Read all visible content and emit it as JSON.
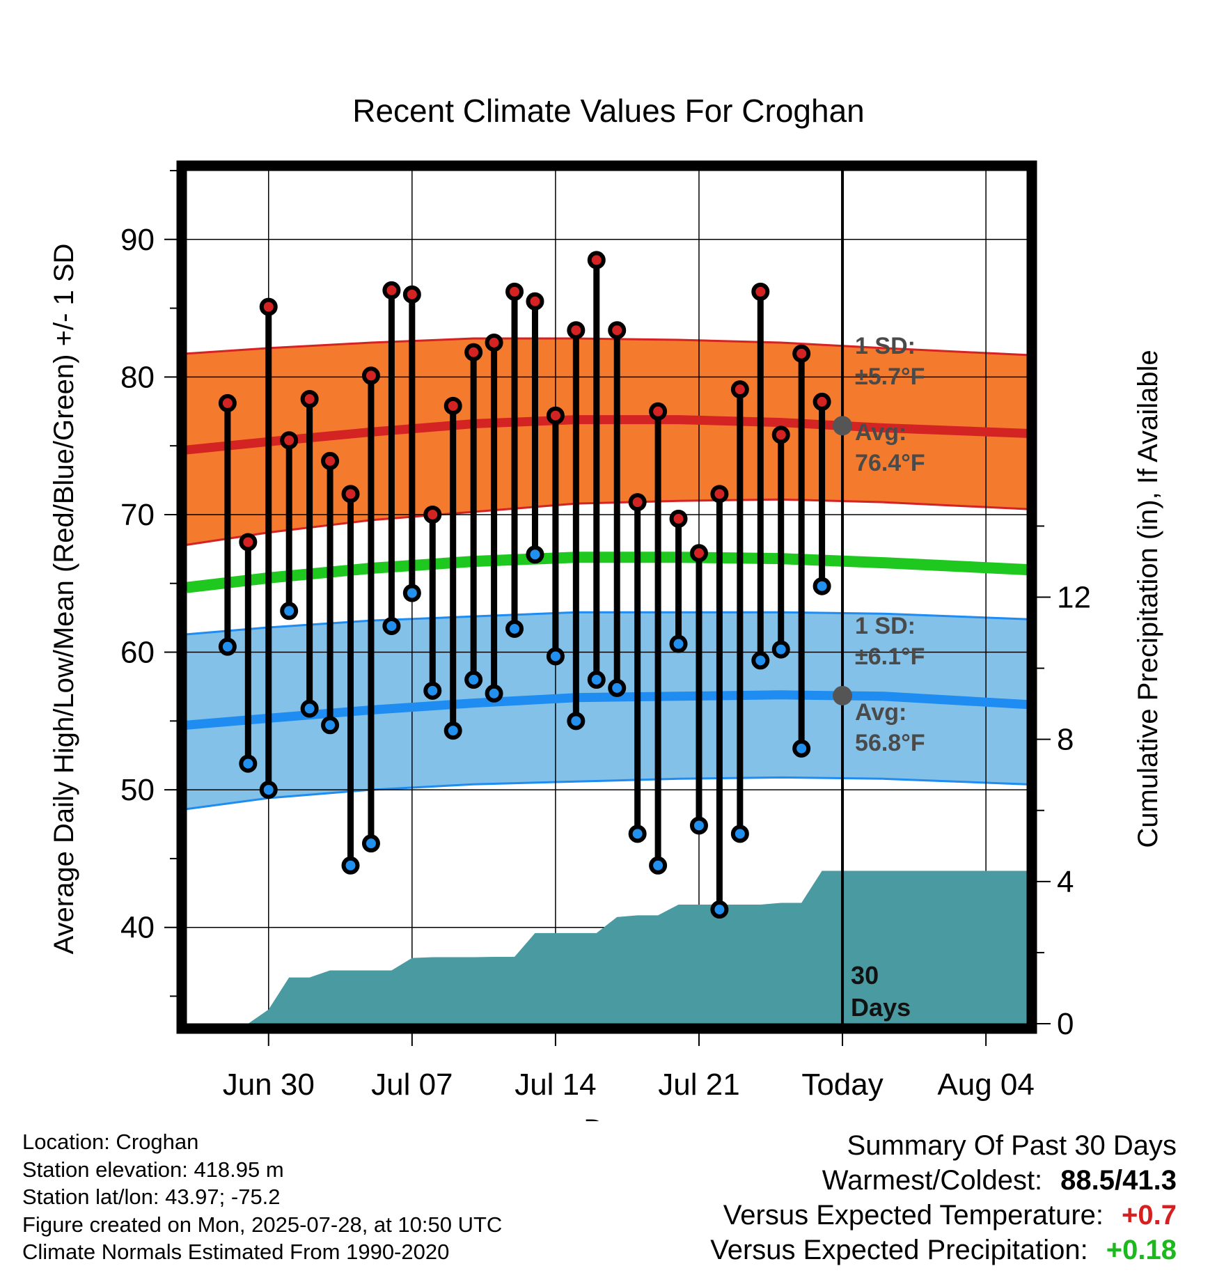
{
  "chart_data": {
    "type": "line",
    "title": "Recent Climate Values For Croghan",
    "xlabel": "Day",
    "ylabel": "Average Daily High/Low/Mean (Red/Blue/Green) +/- 1 SD",
    "y2label": "Cumulative Precipitation (in), If Available",
    "x_ticks": [
      "Jun 30",
      "Jul 07",
      "Jul 14",
      "Jul 21",
      "Today",
      "Aug 04"
    ],
    "y_ticks": [
      40,
      50,
      60,
      70,
      80,
      90
    ],
    "y2_ticks": [
      0,
      4,
      8,
      12
    ],
    "ylim": [
      33,
      95
    ],
    "y2lim": [
      0,
      24
    ],
    "xlim": [
      "2025-06-26",
      "2025-08-06"
    ],
    "today": "2025-07-28",
    "grid": true,
    "observed": {
      "dates": [
        "2025-06-28",
        "2025-06-29",
        "2025-06-30",
        "2025-07-01",
        "2025-07-02",
        "2025-07-03",
        "2025-07-04",
        "2025-07-05",
        "2025-07-06",
        "2025-07-07",
        "2025-07-08",
        "2025-07-09",
        "2025-07-10",
        "2025-07-11",
        "2025-07-12",
        "2025-07-13",
        "2025-07-14",
        "2025-07-15",
        "2025-07-16",
        "2025-07-17",
        "2025-07-18",
        "2025-07-19",
        "2025-07-20",
        "2025-07-21",
        "2025-07-22",
        "2025-07-23",
        "2025-07-24",
        "2025-07-25",
        "2025-07-26",
        "2025-07-27"
      ],
      "highs": [
        78.1,
        68.0,
        85.1,
        75.4,
        78.4,
        73.9,
        71.5,
        80.1,
        86.3,
        86.0,
        70.0,
        77.9,
        81.8,
        82.5,
        86.2,
        85.5,
        77.2,
        83.4,
        88.5,
        83.4,
        70.9,
        77.5,
        69.7,
        67.2,
        71.5,
        79.1,
        86.2,
        75.8,
        81.7,
        78.2
      ],
      "lows": [
        60.4,
        51.9,
        50.0,
        63.0,
        55.9,
        54.7,
        44.5,
        46.1,
        61.9,
        64.3,
        57.2,
        54.3,
        58.0,
        57.0,
        61.7,
        67.1,
        59.7,
        55.0,
        58.0,
        57.4,
        46.8,
        44.5,
        60.6,
        47.4,
        41.3,
        46.8,
        59.4,
        60.2,
        53.0,
        64.8
      ]
    },
    "normals": {
      "dates": [
        "2025-06-26",
        "2025-06-30",
        "2025-07-05",
        "2025-07-10",
        "2025-07-15",
        "2025-07-20",
        "2025-07-25",
        "2025-07-30",
        "2025-08-06"
      ],
      "high_avg": [
        74.7,
        75.3,
        76.0,
        76.6,
        76.9,
        76.9,
        76.7,
        76.3,
        75.9
      ],
      "high_sd_upper": [
        81.7,
        82.1,
        82.5,
        82.8,
        82.8,
        82.7,
        82.5,
        82.1,
        81.6
      ],
      "high_sd_lower": [
        67.8,
        68.7,
        69.6,
        70.2,
        70.8,
        71.0,
        71.1,
        70.9,
        70.4
      ],
      "mean_avg": [
        64.7,
        65.4,
        66.1,
        66.6,
        66.9,
        66.9,
        66.8,
        66.5,
        66.0
      ],
      "low_avg": [
        54.7,
        55.2,
        55.8,
        56.3,
        56.7,
        56.8,
        56.9,
        56.8,
        56.2
      ],
      "low_sd_upper": [
        61.3,
        61.8,
        62.3,
        62.6,
        62.9,
        62.9,
        62.9,
        62.8,
        62.4
      ],
      "low_sd_lower": [
        48.6,
        49.4,
        50.0,
        50.4,
        50.6,
        50.8,
        50.9,
        50.8,
        50.4
      ]
    },
    "precip": {
      "dates": [
        "2025-06-28",
        "2025-06-29",
        "2025-06-30",
        "2025-07-01",
        "2025-07-02",
        "2025-07-03",
        "2025-07-04",
        "2025-07-05",
        "2025-07-06",
        "2025-07-07",
        "2025-07-08",
        "2025-07-09",
        "2025-07-10",
        "2025-07-11",
        "2025-07-12",
        "2025-07-13",
        "2025-07-14",
        "2025-07-15",
        "2025-07-16",
        "2025-07-17",
        "2025-07-18",
        "2025-07-19",
        "2025-07-20",
        "2025-07-21",
        "2025-07-22",
        "2025-07-23",
        "2025-07-24",
        "2025-07-25",
        "2025-07-26",
        "2025-07-27",
        "2025-07-28",
        "2025-08-06"
      ],
      "cumulative": [
        0.0,
        0.0,
        0.4,
        1.3,
        1.3,
        1.5,
        1.5,
        1.5,
        1.5,
        1.85,
        1.87,
        1.87,
        1.87,
        1.88,
        1.88,
        2.55,
        2.55,
        2.55,
        2.55,
        3.0,
        3.05,
        3.05,
        3.35,
        3.35,
        3.35,
        3.35,
        3.35,
        3.4,
        3.4,
        4.3,
        4.3,
        4.3
      ]
    },
    "annotations": {
      "high_sd": [
        "1 SD:",
        "±5.7°F"
      ],
      "high_avg": [
        "Avg:",
        "76.4°F"
      ],
      "low_sd": [
        "1 SD:",
        "±6.1°F"
      ],
      "low_avg": [
        "Avg:",
        "56.8°F"
      ],
      "window": [
        "30",
        "Days"
      ]
    },
    "colors": {
      "high_band": "#f47a2e",
      "high_line": "#d42323",
      "low_band": "#84c1e8",
      "low_line": "#1e8cf0",
      "mean_line": "#1ec81e",
      "precip_fill": "#4a9aa2",
      "high_marker": "#d42323",
      "low_marker": "#2290ee",
      "today_marker": "#555555"
    }
  },
  "info": {
    "location": "Location: Croghan",
    "elevation": "Station elevation: 418.95 m",
    "latlon": "Station lat/lon: 43.97; -75.2",
    "created": "Figure created on Mon, 2025-07-28, at 10:50 UTC",
    "normals": "Climate Normals Estimated From 1990-2020"
  },
  "summary": {
    "heading": "Summary Of Past 30 Days",
    "warmest_label": "Warmest/Coldest:",
    "warmest_value": "88.5/41.3",
    "temp_label": "Versus Expected Temperature:",
    "temp_value": "+0.7",
    "precip_label": "Versus Expected Precipitation:",
    "precip_value": "+0.18"
  }
}
